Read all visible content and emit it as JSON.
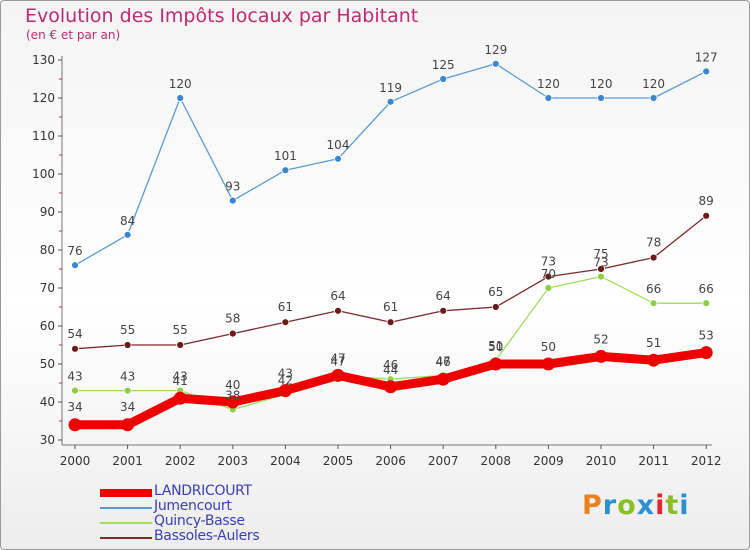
{
  "title": "Evolution des Impôts locaux par Habitant",
  "subtitle": "(en € et par an)",
  "logo": {
    "text": "Proxiti",
    "colors": [
      "#e8821e",
      "#2c8fd0",
      "#8cbf26",
      "#2c8fd0",
      "#e3262d",
      "#8cbf26",
      "#2c8fd0"
    ]
  },
  "chart_data": {
    "type": "line",
    "x": [
      "2000",
      "2001",
      "2002",
      "2003",
      "2004",
      "2005",
      "2006",
      "2007",
      "2008",
      "2009",
      "2010",
      "2011",
      "2012"
    ],
    "ylim": [
      30,
      130
    ],
    "yticks": [
      30,
      40,
      50,
      60,
      70,
      80,
      90,
      100,
      110,
      120,
      130
    ],
    "grid": false,
    "legend_position": "bottom-left",
    "series": [
      {
        "name": "Jumencourt",
        "color": "#5b9bd5",
        "marker": "#3a87cf",
        "values": [
          76,
          84,
          120,
          93,
          101,
          104,
          119,
          125,
          129,
          120,
          120,
          120,
          127
        ]
      },
      {
        "name": "Bassoles-Aulers",
        "color": "#7a2a2a",
        "marker": "#6b1a1a",
        "values": [
          54,
          55,
          55,
          58,
          61,
          64,
          61,
          64,
          65,
          73,
          75,
          78,
          89
        ]
      },
      {
        "name": "Quincy-Basse",
        "color": "#9ddc5c",
        "marker": "#8ccf45",
        "values": [
          43,
          43,
          43,
          38,
          42,
          47,
          46,
          47,
          51,
          70,
          73,
          66,
          66
        ]
      },
      {
        "name": "LANDRICOURT",
        "color": "#ee0000",
        "marker": "#ee0000",
        "values": [
          34,
          34,
          41,
          40,
          43,
          47,
          44,
          46,
          50,
          50,
          52,
          51,
          53
        ]
      }
    ],
    "value_labels": {
      "Jumencourt": [
        "76",
        "84",
        "120",
        "93",
        "101",
        "104",
        "119",
        "125",
        "129",
        "120",
        "120",
        "120",
        "127"
      ],
      "Bassoles-Aulers": [
        "54",
        "55",
        "55",
        "58",
        "61",
        "64",
        "61",
        "64",
        "65",
        "73",
        "75",
        "78",
        "89"
      ],
      "Quincy-Basse": [
        "43",
        "43",
        "43",
        "38",
        "42",
        "47",
        "46",
        "47",
        "51",
        "70",
        "73",
        "66",
        "66"
      ],
      "LANDRICOURT": [
        "34",
        "34",
        "41",
        "40",
        "43",
        "47",
        "44",
        "46",
        "50",
        "50",
        "52",
        "51",
        "53"
      ]
    }
  },
  "legend": [
    {
      "label": "LANDRICOURT",
      "color": "#ee0000"
    },
    {
      "label": "Jumencourt",
      "color": "#5b9bd5"
    },
    {
      "label": "Quincy-Basse",
      "color": "#9ddc5c"
    },
    {
      "label": "Bassoles-Aulers",
      "color": "#7a2a2a"
    }
  ]
}
